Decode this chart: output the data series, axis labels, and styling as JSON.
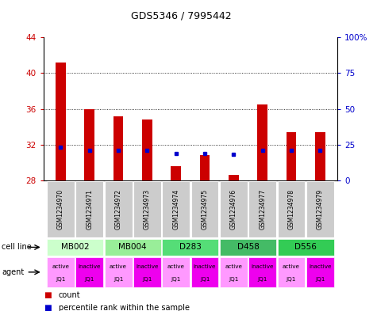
{
  "title": "GDS5346 / 7995442",
  "samples": [
    "GSM1234970",
    "GSM1234971",
    "GSM1234972",
    "GSM1234973",
    "GSM1234974",
    "GSM1234975",
    "GSM1234976",
    "GSM1234977",
    "GSM1234978",
    "GSM1234979"
  ],
  "bar_values": [
    41.2,
    36.0,
    35.2,
    34.8,
    29.6,
    30.8,
    28.6,
    36.5,
    33.4,
    33.4
  ],
  "bar_base": 28,
  "blue_dot_values": [
    31.7,
    31.4,
    31.4,
    31.4,
    31.0,
    31.0,
    30.9,
    31.4,
    31.4,
    31.4
  ],
  "ylim": [
    28,
    44
  ],
  "yticks": [
    28,
    32,
    36,
    40,
    44
  ],
  "right_yticks": [
    0,
    25,
    50,
    75,
    100
  ],
  "bar_color": "#cc0000",
  "dot_color": "#0000cc",
  "left_tick_color": "#cc0000",
  "right_tick_color": "#0000cc",
  "sample_box_color": "#cccccc",
  "cell_lines_data": [
    {
      "name": "MB002",
      "cols": [
        0,
        1
      ],
      "color": "#ccffcc"
    },
    {
      "name": "MB004",
      "cols": [
        2,
        3
      ],
      "color": "#99ee99"
    },
    {
      "name": "D283",
      "cols": [
        4,
        5
      ],
      "color": "#55dd77"
    },
    {
      "name": "D458",
      "cols": [
        6,
        7
      ],
      "color": "#44bb66"
    },
    {
      "name": "D556",
      "cols": [
        8,
        9
      ],
      "color": "#33cc55"
    }
  ],
  "agents": [
    {
      "label": "active\nJQ1",
      "type": "active"
    },
    {
      "label": "inactive\nJQ1",
      "type": "inactive"
    },
    {
      "label": "active\nJQ1",
      "type": "active"
    },
    {
      "label": "inactive\nJQ1",
      "type": "inactive"
    },
    {
      "label": "active\nJQ1",
      "type": "active"
    },
    {
      "label": "inactive\nJQ1",
      "type": "inactive"
    },
    {
      "label": "active\nJQ1",
      "type": "active"
    },
    {
      "label": "inactive\nJQ1",
      "type": "inactive"
    },
    {
      "label": "active\nJQ1",
      "type": "active"
    },
    {
      "label": "inactive\nJQ1",
      "type": "inactive"
    }
  ],
  "active_color": "#ff99ff",
  "inactive_color": "#ee00ee",
  "legend_red_label": "count",
  "legend_blue_label": "percentile rank within the sample"
}
